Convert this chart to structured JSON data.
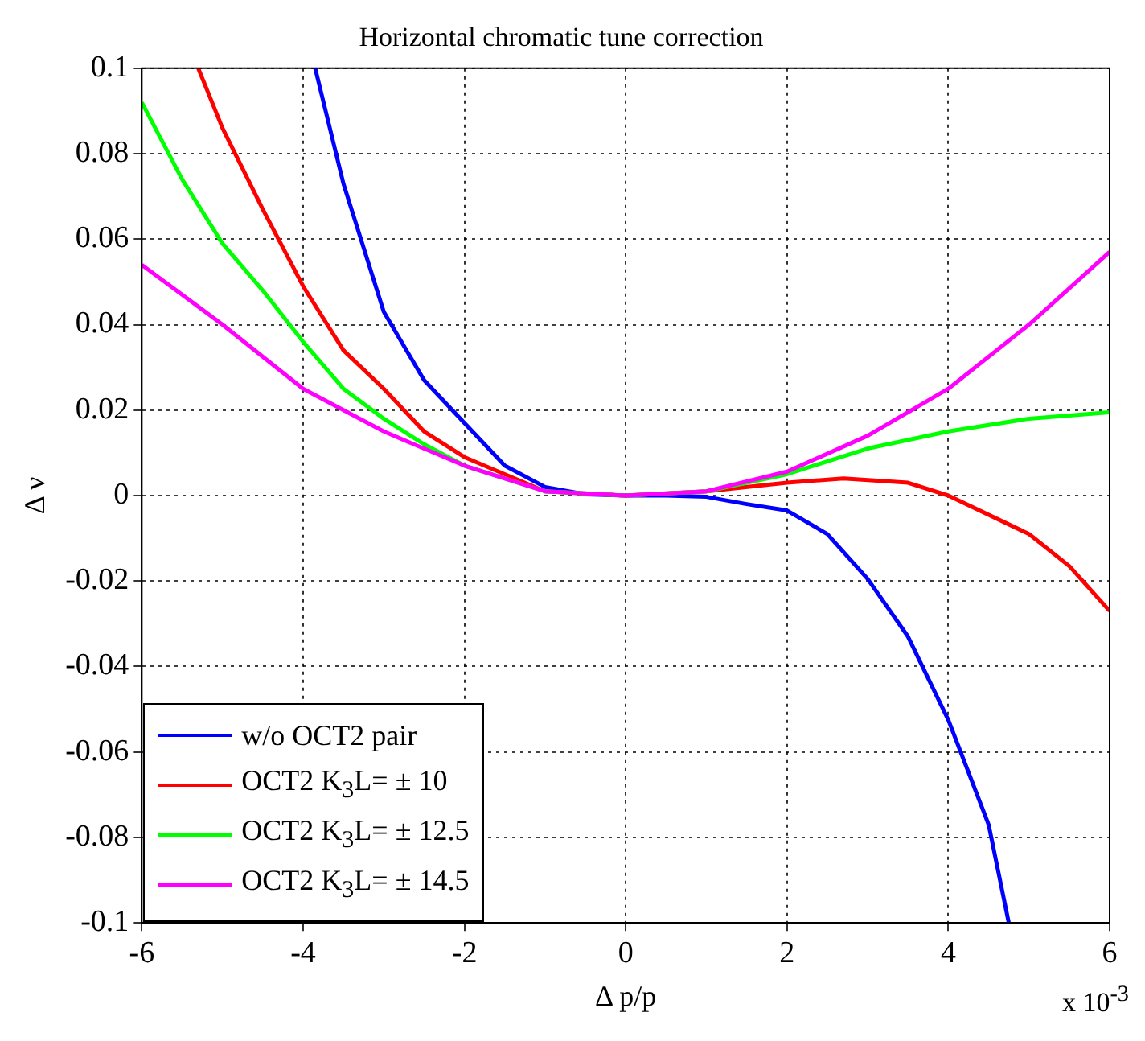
{
  "chart_data": {
    "type": "line",
    "title": "Horizontal chromatic tune correction",
    "xlabel": "Δ p/p",
    "ylabel": "Δ ν",
    "annotations": [
      "x 10$^{-3}$"
    ],
    "xlim": [
      -6,
      6
    ],
    "xticks": [
      -6,
      -4,
      -2,
      0,
      2,
      4,
      6
    ],
    "ylim": [
      -0.1,
      0.1
    ],
    "yticks": [
      -0.1,
      -0.08,
      -0.06,
      -0.04,
      -0.02,
      0,
      0.02,
      0.04,
      0.06,
      0.08,
      0.1
    ],
    "grid": true,
    "legend": "bottom left",
    "marker": "none",
    "line_style": "solid",
    "series": [
      {
        "name": "w/o OCT2 pair",
        "color": "#0000ff",
        "x": [
          -3.85,
          -3.5,
          -3,
          -2.5,
          -2,
          -1.5,
          -1,
          -0.5,
          0,
          0.5,
          1,
          1.5,
          2,
          2.5,
          3,
          3.5,
          4,
          4.5,
          4.75
        ],
        "values": [
          0.1,
          0.073,
          0.043,
          0.027,
          0.017,
          0.007,
          0.002,
          0.0003,
          0,
          0,
          -0.0003,
          -0.002,
          -0.0035,
          -0.009,
          -0.0195,
          -0.033,
          -0.0525,
          -0.077,
          -0.1
        ]
      },
      {
        "name": "OCT2 K$_{3}$L= ± 10",
        "color": "#ff0000",
        "x": [
          -5.3,
          -5,
          -4.5,
          -4,
          -3.5,
          -3,
          -2.5,
          -2,
          -1,
          0,
          1,
          2,
          2.7,
          3.5,
          4,
          5,
          5.5,
          6
        ],
        "values": [
          0.1,
          0.086,
          0.067,
          0.049,
          0.034,
          0.025,
          0.015,
          0.009,
          0.001,
          0,
          0.001,
          0.003,
          0.004,
          0.003,
          0,
          -0.009,
          -0.0165,
          -0.027
        ]
      },
      {
        "name": "OCT2 K$_{3}$L= ± 12.5",
        "color": "#00ff00",
        "x": [
          -6,
          -5.5,
          -5,
          -4.5,
          -4,
          -3.5,
          -3,
          -2.5,
          -2,
          -1,
          0,
          1,
          2,
          3,
          4,
          5,
          6
        ],
        "values": [
          0.092,
          0.074,
          0.059,
          0.048,
          0.036,
          0.025,
          0.018,
          0.012,
          0.007,
          0.001,
          0,
          0.001,
          0.005,
          0.011,
          0.015,
          0.018,
          0.0195
        ]
      },
      {
        "name": "OCT2 K$_{3}$L= ± 14.5",
        "color": "#ff00ff",
        "x": [
          -6,
          -5,
          -4,
          -3,
          -2,
          -1,
          0,
          1,
          2,
          3,
          4,
          5,
          6
        ],
        "values": [
          0.054,
          0.04,
          0.025,
          0.015,
          0.007,
          0.001,
          0,
          0.001,
          0.0056,
          0.014,
          0.025,
          0.04,
          0.057
        ]
      }
    ]
  }
}
